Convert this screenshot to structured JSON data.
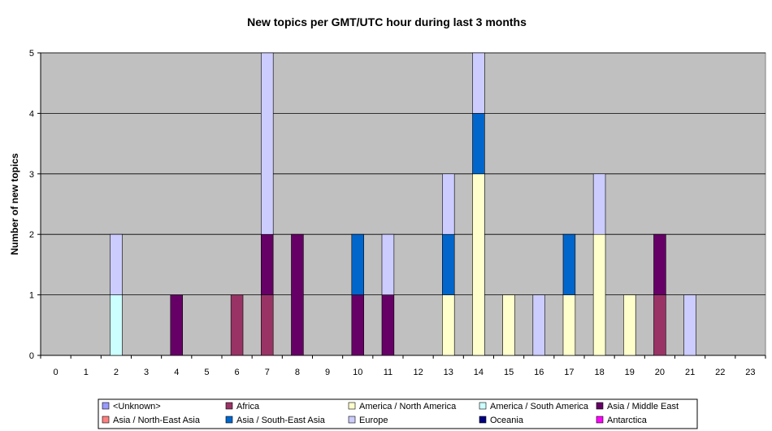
{
  "chart_data": {
    "type": "bar",
    "stacked": true,
    "title": "New topics per GMT/UTC hour during last 3 months",
    "xlabel": "",
    "ylabel": "Number of new topics",
    "ylim": [
      0,
      5
    ],
    "yticks": [
      0,
      1,
      2,
      3,
      4,
      5
    ],
    "grid": true,
    "legend_position": "bottom",
    "categories": [
      "0",
      "1",
      "2",
      "3",
      "4",
      "5",
      "6",
      "7",
      "8",
      "9",
      "10",
      "11",
      "12",
      "13",
      "14",
      "15",
      "16",
      "17",
      "18",
      "19",
      "20",
      "21",
      "22",
      "23"
    ],
    "series": [
      {
        "name": "<Unknown>",
        "color": "#9999ff",
        "values": [
          0,
          0,
          0,
          0,
          0,
          0,
          0,
          0,
          0,
          0,
          0,
          0,
          0,
          0,
          0,
          0,
          0,
          0,
          0,
          0,
          0,
          0,
          0,
          0
        ]
      },
      {
        "name": "Africa",
        "color": "#993366",
        "values": [
          0,
          0,
          0,
          0,
          0,
          0,
          1,
          1,
          0,
          0,
          0,
          0,
          0,
          0,
          0,
          0,
          0,
          0,
          0,
          0,
          1,
          0,
          0,
          0
        ]
      },
      {
        "name": "America / North America",
        "color": "#ffffcc",
        "values": [
          0,
          0,
          0,
          0,
          0,
          0,
          0,
          0,
          0,
          0,
          0,
          0,
          0,
          1,
          3,
          1,
          0,
          1,
          2,
          1,
          0,
          0,
          0,
          0
        ]
      },
      {
        "name": "America / South America",
        "color": "#ccffff",
        "values": [
          0,
          0,
          1,
          0,
          0,
          0,
          0,
          0,
          0,
          0,
          0,
          0,
          0,
          0,
          0,
          0,
          0,
          0,
          0,
          0,
          0,
          0,
          0,
          0
        ]
      },
      {
        "name": "Asia / Middle East",
        "color": "#660066",
        "values": [
          0,
          0,
          0,
          0,
          1,
          0,
          0,
          1,
          2,
          0,
          1,
          1,
          0,
          0,
          0,
          0,
          0,
          0,
          0,
          0,
          1,
          0,
          0,
          0
        ]
      },
      {
        "name": "Asia / North-East Asia",
        "color": "#ff8080",
        "values": [
          0,
          0,
          0,
          0,
          0,
          0,
          0,
          0,
          0,
          0,
          0,
          0,
          0,
          0,
          0,
          0,
          0,
          0,
          0,
          0,
          0,
          0,
          0,
          0
        ]
      },
      {
        "name": "Asia / South-East Asia",
        "color": "#0066cc",
        "values": [
          0,
          0,
          0,
          0,
          0,
          0,
          0,
          0,
          0,
          0,
          1,
          0,
          0,
          1,
          1,
          0,
          0,
          1,
          0,
          0,
          0,
          0,
          0,
          0
        ]
      },
      {
        "name": "Europe",
        "color": "#ccccff",
        "values": [
          0,
          0,
          1,
          0,
          0,
          0,
          0,
          3,
          0,
          0,
          0,
          1,
          0,
          1,
          1,
          0,
          1,
          0,
          1,
          0,
          0,
          1,
          0,
          0
        ]
      },
      {
        "name": "Oceania",
        "color": "#000080",
        "values": [
          0,
          0,
          0,
          0,
          0,
          0,
          0,
          0,
          0,
          0,
          0,
          0,
          0,
          0,
          0,
          0,
          0,
          0,
          0,
          0,
          0,
          0,
          0,
          0
        ]
      },
      {
        "name": "Antarctica",
        "color": "#ff00ff",
        "values": [
          0,
          0,
          0,
          0,
          0,
          0,
          0,
          0,
          0,
          0,
          0,
          0,
          0,
          0,
          0,
          0,
          0,
          0,
          0,
          0,
          0,
          0,
          0,
          0
        ]
      }
    ],
    "plot_background": "#c0c0c0"
  }
}
